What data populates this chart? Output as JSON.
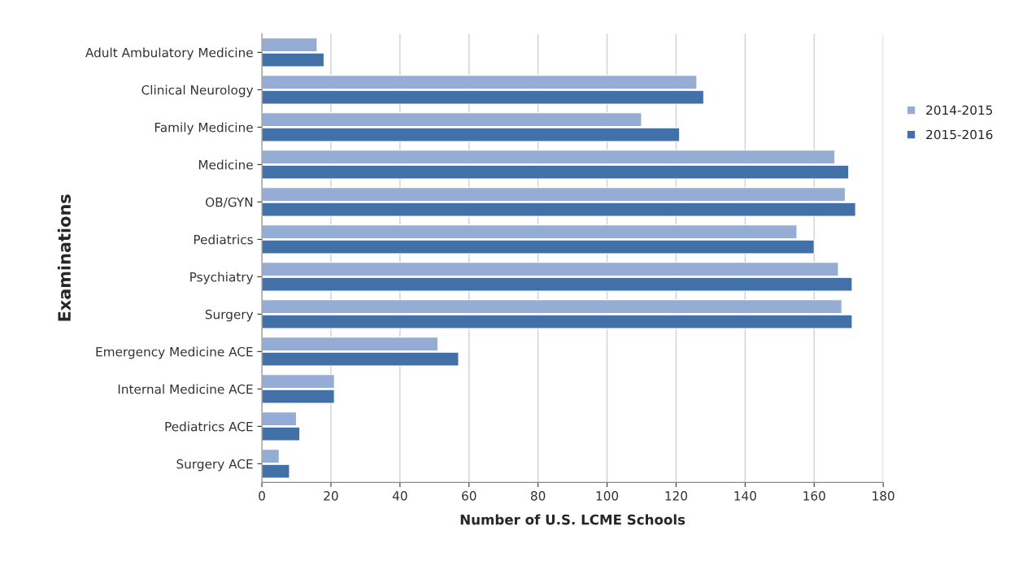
{
  "chart_data": {
    "type": "bar",
    "orientation": "horizontal",
    "categories": [
      "Adult Ambulatory Medicine",
      "Clinical Neurology",
      "Family Medicine",
      "Medicine",
      "OB/GYN",
      "Pediatrics",
      "Psychiatry",
      "Surgery",
      "Emergency Medicine ACE",
      "Internal Medicine ACE",
      "Pediatrics ACE",
      "Surgery ACE"
    ],
    "series": [
      {
        "name": "2014-2015",
        "color": "#95acd4",
        "values": [
          16,
          126,
          110,
          166,
          169,
          155,
          167,
          168,
          51,
          21,
          10,
          5
        ]
      },
      {
        "name": "2015-2016",
        "color": "#4470a8",
        "values": [
          18,
          128,
          121,
          170,
          172,
          160,
          171,
          171,
          57,
          21,
          11,
          8
        ]
      }
    ],
    "xlabel": "Number of U.S. LCME Schools",
    "ylabel": "Examinations",
    "xlim": [
      0,
      180
    ],
    "xticks": [
      0,
      20,
      40,
      60,
      80,
      100,
      120,
      140,
      160,
      180
    ],
    "grid": "x",
    "legend": "right"
  }
}
